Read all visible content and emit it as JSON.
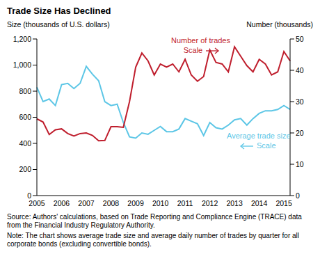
{
  "chart_data": {
    "type": "line",
    "title": "Trade Size Has Declined",
    "y_label": "Size (thousands of U.S. dollars)",
    "y2_label": "Number (thousands)",
    "categories": [
      "2005",
      null,
      null,
      null,
      "2006",
      null,
      null,
      null,
      "2007",
      null,
      null,
      null,
      "2008",
      null,
      null,
      null,
      "2009",
      null,
      null,
      null,
      "2010",
      null,
      null,
      null,
      "2011",
      null,
      null,
      null,
      "2012",
      null,
      null,
      null,
      "2013",
      null,
      null,
      null,
      "2014",
      null,
      null,
      null,
      "2015",
      null
    ],
    "series": [
      {
        "name": "Average trade size",
        "color": "#5cc6e6",
        "values": [
          830,
          720,
          740,
          690,
          850,
          860,
          820,
          860,
          990,
          930,
          880,
          720,
          690,
          700,
          560,
          450,
          440,
          480,
          470,
          500,
          530,
          490,
          490,
          510,
          590,
          570,
          550,
          460,
          560,
          520,
          510,
          540,
          580,
          590,
          540,
          590,
          630,
          650,
          650,
          660,
          690,
          660
        ]
      },
      {
        "name": "Number of trades",
        "color": "#bf1e2d",
        "axis": "y2",
        "values": [
          24.5,
          23.5,
          19.5,
          21,
          21.3,
          19.8,
          19,
          19.8,
          20,
          19.2,
          17.5,
          17.6,
          22,
          22,
          21.8,
          30,
          41,
          45.5,
          43,
          38.5,
          42,
          41,
          42,
          39.5,
          43.5,
          38.5,
          36.5,
          38,
          46.5,
          42.5,
          42,
          39.5,
          47.5,
          44.5,
          41.5,
          39.5,
          43.5,
          42,
          38.5,
          39.5,
          46,
          43
        ]
      }
    ],
    "annotations": [
      "Scale",
      "Scale"
    ],
    "ylim": [
      0,
      1200
    ],
    "yticks": [
      0,
      200,
      400,
      600,
      800,
      {
        "value": 1000,
        "label": "1,000"
      },
      {
        "value": 1200,
        "label": "1,200"
      }
    ],
    "y2lim": [
      0,
      50
    ],
    "y2ticks": [
      0,
      10,
      20,
      30,
      40,
      50
    ],
    "grid": false,
    "source": "Source: Authors' calculations, based on Trade Reporting and Compliance Engine (TRACE) data from the Financial Industry Regulatory Authority.",
    "note": "Note: The chart shows average trade size and average daily number of trades by quarter for all corporate bonds (excluding convertible bonds)."
  }
}
